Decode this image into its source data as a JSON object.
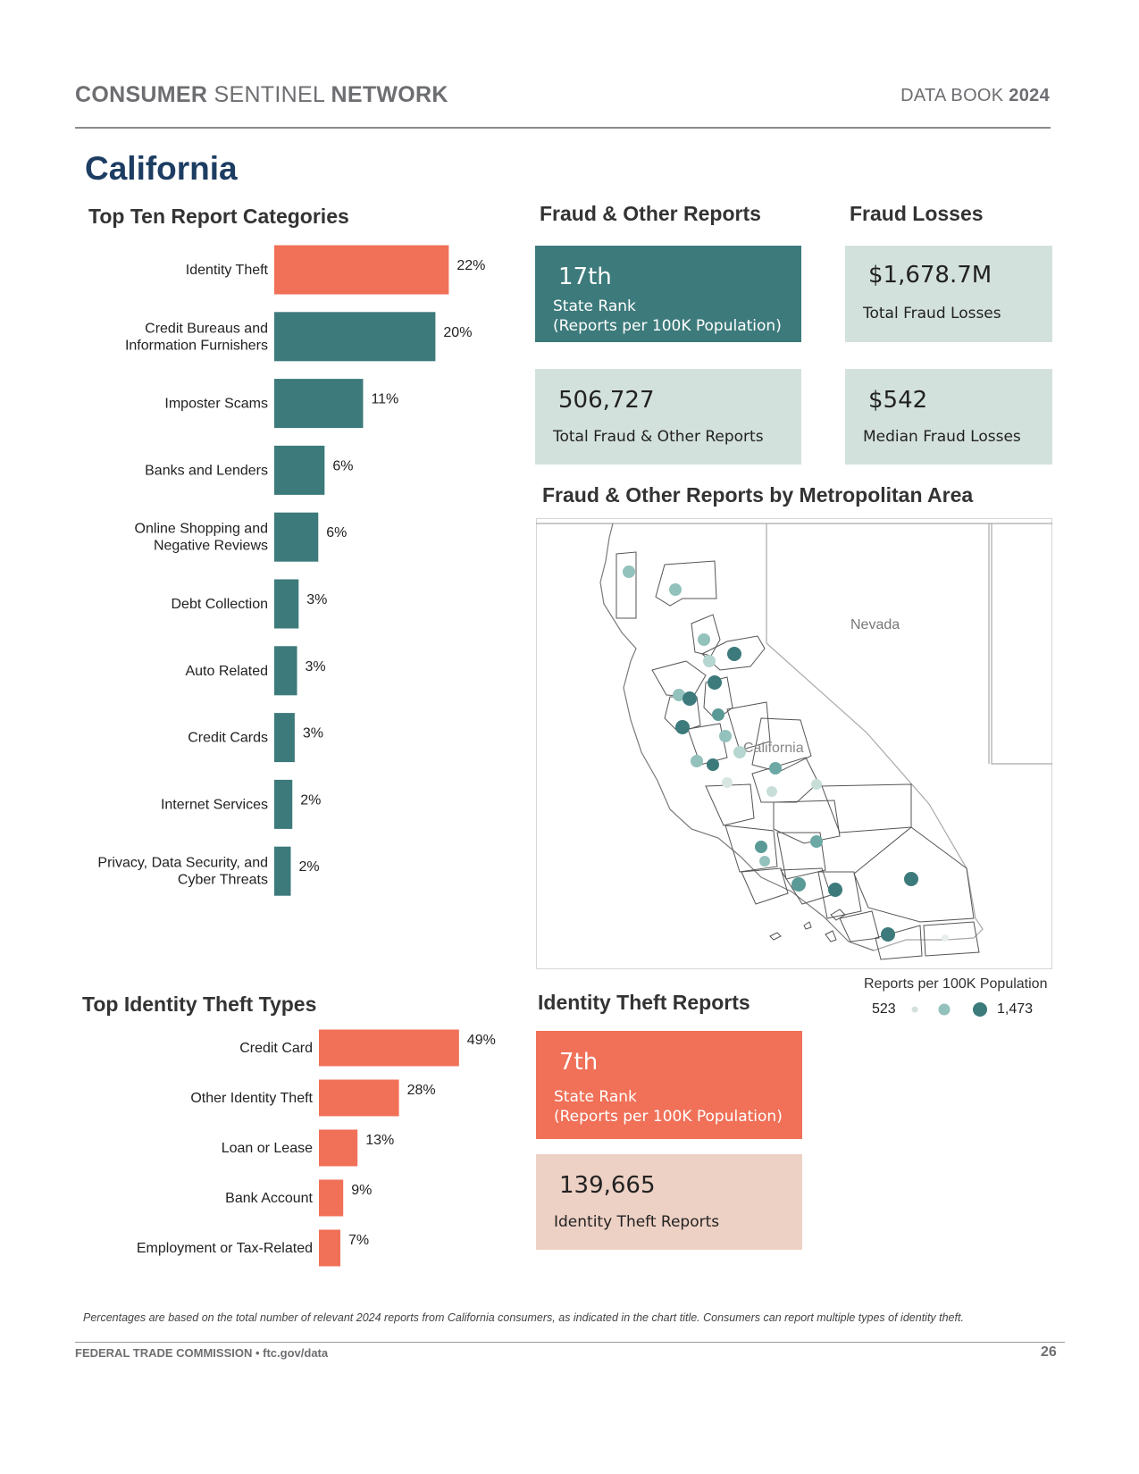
{
  "header": {
    "left_bold1": "CONSUMER",
    "left_light": "SENTINEL",
    "left_bold2": "NETWORK",
    "right_light": "DATA BOOK",
    "right_bold": "2024"
  },
  "state_title": "California",
  "sections": {
    "top_ten": "Top Ten Report Categories",
    "fraud_other": "Fraud & Other Reports",
    "fraud_losses": "Fraud Losses",
    "metro": "Fraud & Other Reports by Metropolitan Area",
    "id_theft_types": "Top Identity Theft Types",
    "id_theft_reports": "Identity Theft Reports"
  },
  "cards": {
    "state_rank": {
      "value": "17th",
      "label1": "State Rank",
      "label2": "(Reports per 100K Population)"
    },
    "total_reports": {
      "value": "506,727",
      "label": "Total Fraud & Other Reports"
    },
    "total_losses": {
      "value": "$1,678.7M",
      "label": "Total Fraud Losses"
    },
    "median_losses": {
      "value": "$542",
      "label": "Median Fraud Losses"
    },
    "id_rank": {
      "value": "7th",
      "label1": "State Rank",
      "label2": "(Reports per 100K Population)"
    },
    "id_reports": {
      "value": "139,665",
      "label": "Identity Theft Reports"
    }
  },
  "map": {
    "label_nevada": "Nevada",
    "label_california": "California",
    "legend_title": "Reports per 100K Population",
    "legend_min": "523",
    "legend_max": "1,473"
  },
  "note": "Percentages are based on the total number of relevant 2024 reports from California consumers, as indicated in the chart title.  Consumers can report multiple types of identity theft.",
  "footer": {
    "left": "FEDERAL TRADE COMMISSION • ftc.gov/data",
    "page": "26"
  },
  "colors": {
    "coral": "#f07058",
    "teal": "#3d7a7b",
    "light_teal": "#d3e1dd",
    "light_coral": "#eed1c5",
    "navy": "#1d3d63"
  },
  "chart_data": [
    {
      "type": "bar",
      "orientation": "horizontal",
      "title": "Top Ten Report Categories",
      "categories": [
        [
          "Identity Theft"
        ],
        [
          "Credit Bureaus and",
          "Information Furnishers"
        ],
        [
          "Imposter Scams"
        ],
        [
          "Banks and Lenders"
        ],
        [
          "Online Shopping and",
          "Negative Reviews"
        ],
        [
          "Debt Collection"
        ],
        [
          "Auto Related"
        ],
        [
          "Credit Cards"
        ],
        [
          "Internet Services"
        ],
        [
          "Privacy, Data Security, and",
          "Cyber Threats"
        ]
      ],
      "values": [
        22,
        20,
        11,
        6,
        6,
        3,
        3,
        3,
        2,
        2
      ],
      "value_labels": [
        "22%",
        "20%",
        "11%",
        "6%",
        "6%",
        "3%",
        "3%",
        "3%",
        "2%",
        "2%"
      ],
      "exact_values": [
        22.2,
        20.5,
        11.3,
        6.4,
        5.6,
        3.1,
        2.9,
        2.6,
        2.3,
        2.1
      ],
      "highlight_index": 0,
      "bar_colors": [
        "#f07058",
        "#3d7a7b"
      ]
    },
    {
      "type": "bar",
      "orientation": "horizontal",
      "title": "Top Identity Theft Types",
      "categories": [
        [
          "Credit Card"
        ],
        [
          "Other Identity Theft"
        ],
        [
          "Loan or Lease"
        ],
        [
          "Bank Account"
        ],
        [
          "Employment or Tax-Related"
        ]
      ],
      "values": [
        49,
        28,
        13,
        9,
        7
      ],
      "value_labels": [
        "49%",
        "28%",
        "13%",
        "9%",
        "7%"
      ],
      "exact_values": [
        49,
        28,
        13.5,
        8.5,
        7.5
      ],
      "bar_colors": [
        "#f07058"
      ]
    }
  ]
}
